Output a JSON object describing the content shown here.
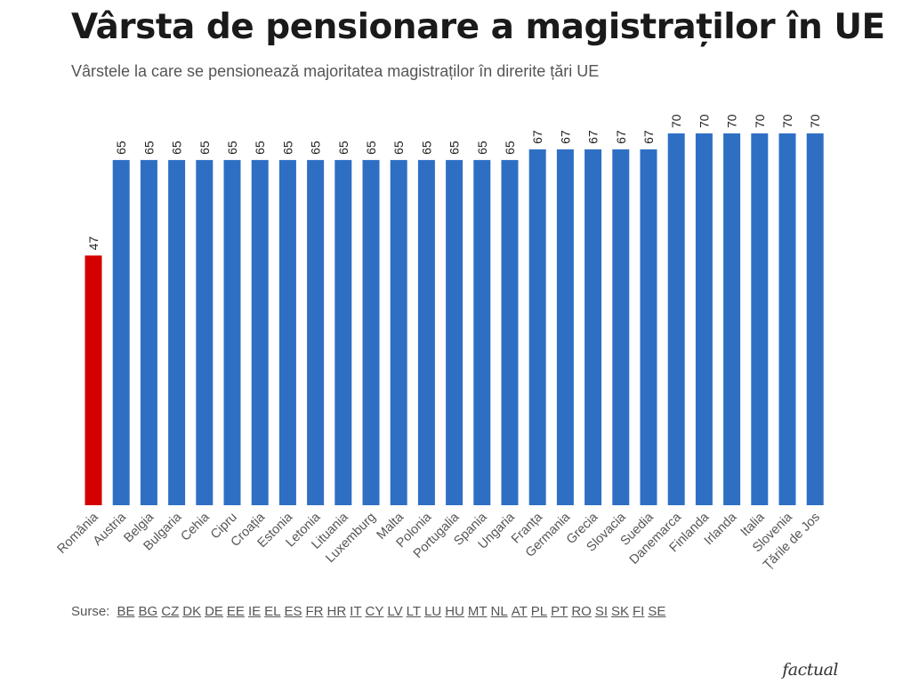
{
  "chart_data": {
    "type": "bar",
    "title": "Vârsta de pensionare a magistraților în UE",
    "subtitle": "Vârstele la care se pensionează majoritatea magistraților în direrite țări UE",
    "categories": [
      "România",
      "Austria",
      "Belgia",
      "Bulgaria",
      "Cehia",
      "Cipru",
      "Croația",
      "Estonia",
      "Letonia",
      "Lituania",
      "Luxemburg",
      "Malta",
      "Polonia",
      "Portugalia",
      "Spania",
      "Ungaria",
      "Franța",
      "Germania",
      "Grecia",
      "Slovacia",
      "Suedia",
      "Danemarca",
      "Finlanda",
      "Irlanda",
      "Italia",
      "Slovenia",
      "Țările de Jos"
    ],
    "values": [
      47,
      65,
      65,
      65,
      65,
      65,
      65,
      65,
      65,
      65,
      65,
      65,
      65,
      65,
      65,
      65,
      67,
      67,
      67,
      67,
      67,
      70,
      70,
      70,
      70,
      70,
      70
    ],
    "highlight": [
      "România"
    ],
    "colors": {
      "default": "#2e6fc4",
      "highlight": "#d40000"
    },
    "ylim": [
      0,
      70
    ],
    "xlabel": "",
    "ylabel": "",
    "grid": false,
    "legend": "none"
  },
  "sources": {
    "label": "Surse:",
    "links": [
      "BE",
      "BG",
      "CZ",
      "DK",
      "DE",
      "EE",
      "IE",
      "EL",
      "ES",
      "FR",
      "HR",
      "IT",
      "CY",
      "LV",
      "LT",
      "LU",
      "HU",
      "MT",
      "NL",
      "AT",
      "PL",
      "PT",
      "RO",
      "SI",
      "SK",
      "FI",
      "SE"
    ]
  },
  "brand": "factual"
}
